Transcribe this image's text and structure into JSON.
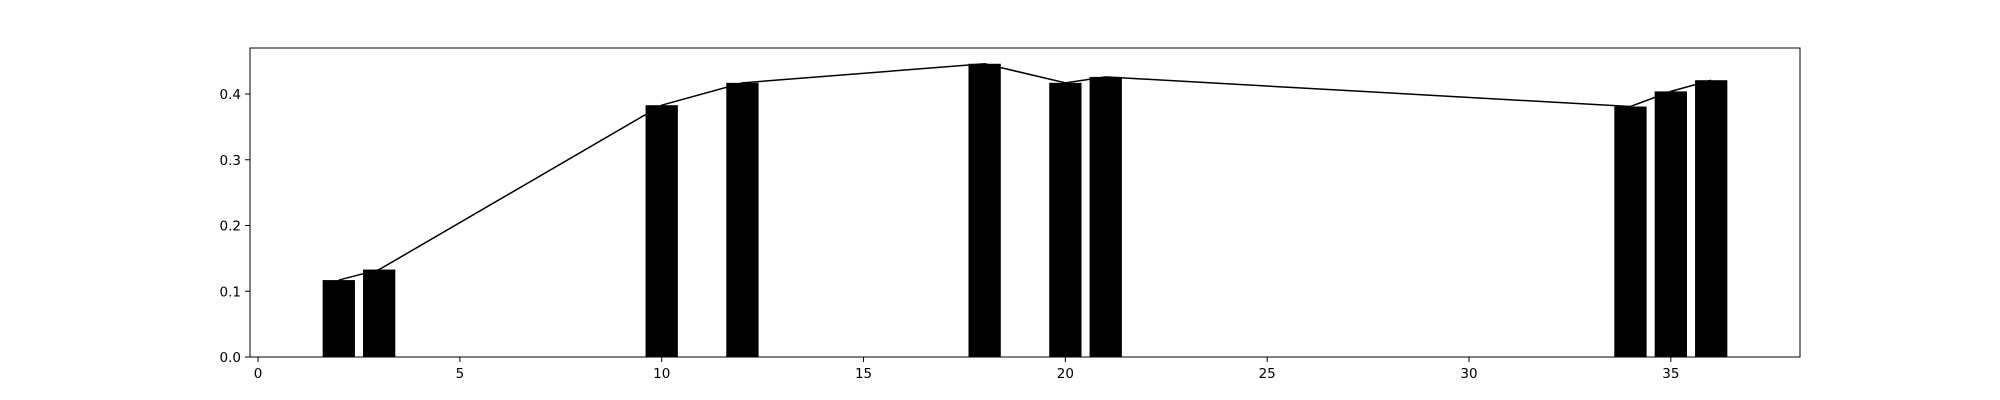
{
  "chart_data": {
    "type": "bar",
    "title": "",
    "xlabel": "",
    "ylabel": "",
    "xlim": [
      -0.2,
      38.2
    ],
    "ylim": [
      0,
      0.47
    ],
    "grid": false,
    "bar_width": 0.8,
    "x_ticks": [
      0,
      5,
      10,
      15,
      20,
      25,
      30,
      35
    ],
    "y_ticks": [
      0.0,
      0.1,
      0.2,
      0.3,
      0.4
    ],
    "x_tick_labels": [
      "0",
      "5",
      "10",
      "15",
      "20",
      "25",
      "30",
      "35"
    ],
    "y_tick_labels": [
      "0.0",
      "0.1",
      "0.2",
      "0.3",
      "0.4"
    ],
    "x": [
      2,
      3,
      10,
      12,
      18,
      20,
      21,
      34,
      35,
      36
    ],
    "values": [
      0.117,
      0.133,
      0.383,
      0.417,
      0.446,
      0.417,
      0.426,
      0.381,
      0.404,
      0.421
    ],
    "line_overlay": true,
    "colors": {
      "bar": "#000000",
      "line": "#000000",
      "axes": "#000000",
      "background": "#ffffff"
    }
  }
}
